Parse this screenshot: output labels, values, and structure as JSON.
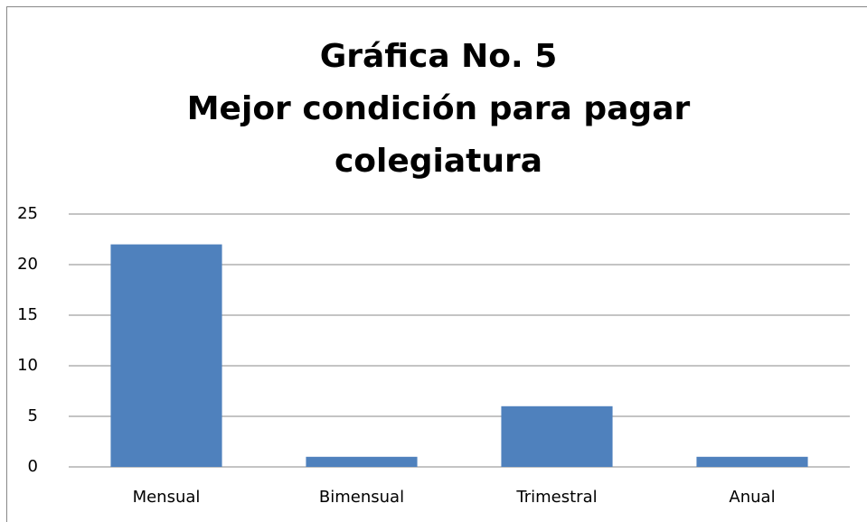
{
  "chart_data": {
    "type": "bar",
    "title": [
      "Gráfica No. 5",
      "Mejor condición para pagar",
      "colegiatura"
    ],
    "categories": [
      "Mensual",
      "Bimensual",
      "Trimestral",
      "Anual"
    ],
    "values": [
      22,
      1,
      6,
      1
    ],
    "color": "#4f81bd",
    "ylim": [
      0,
      25
    ],
    "yticks": [
      0,
      5,
      10,
      15,
      20,
      25
    ],
    "grid": true
  }
}
